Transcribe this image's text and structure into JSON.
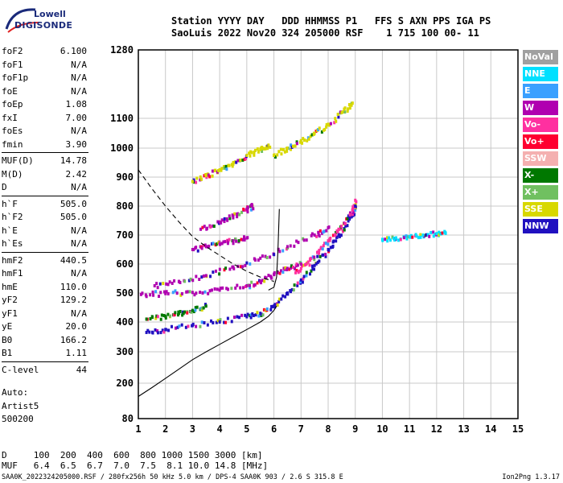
{
  "logo": {
    "line1": "Lowell",
    "line2": "DIGISONDE"
  },
  "header": {
    "line1": "Station YYYY DAY   DDD HHMMSS P1   FFS S AXN PPS IGA PS",
    "line2": "SaoLuis 2022 Nov20 324 205000 RSF    1 715 100 00- 11"
  },
  "params": [
    {
      "k": "foF2",
      "v": "6.100"
    },
    {
      "k": "foF1",
      "v": "N/A"
    },
    {
      "k": "foF1p",
      "v": "N/A"
    },
    {
      "k": "foE",
      "v": "N/A"
    },
    {
      "k": "foEp",
      "v": "1.08"
    },
    {
      "k": "fxI",
      "v": "7.00"
    },
    {
      "k": "foEs",
      "v": "N/A"
    },
    {
      "k": "fmin",
      "v": "3.90"
    },
    {
      "k": "MUF(D)",
      "v": "14.78"
    },
    {
      "k": "M(D)",
      "v": "2.42"
    },
    {
      "k": "D",
      "v": "N/A"
    },
    {
      "k": "h`F",
      "v": "505.0"
    },
    {
      "k": "h`F2",
      "v": "505.0"
    },
    {
      "k": "h`E",
      "v": "N/A"
    },
    {
      "k": "h`Es",
      "v": "N/A"
    },
    {
      "k": "hmF2",
      "v": "440.5"
    },
    {
      "k": "hmF1",
      "v": "N/A"
    },
    {
      "k": "hmE",
      "v": "110.0"
    },
    {
      "k": "yF2",
      "v": "129.2"
    },
    {
      "k": "yF1",
      "v": "N/A"
    },
    {
      "k": "yE",
      "v": "20.0"
    },
    {
      "k": "B0",
      "v": "166.2"
    },
    {
      "k": "B1",
      "v": "1.11"
    },
    {
      "k": "C-level",
      "v": "44"
    }
  ],
  "auto": {
    "line1": "Auto:",
    "line2": "Artist5",
    "line3": "500200"
  },
  "dmuf": {
    "d_line": "D     100  200  400  600  800 1000 1500 3000 [km]",
    "muf_line": "MUF   6.4  6.5  6.7  7.0  7.5  8.1 10.0 14.8 [MHz]"
  },
  "footer": {
    "left": "SAA0K_2022324205000.RSF / 280fx256h 50 kHz 5.0 km / DPS-4 SAA0K 903 / 2.6 S 315.8 E",
    "right": "Ion2Png 1.3.17"
  },
  "legend": [
    {
      "label": "NoVal",
      "color": "#a0a0a0"
    },
    {
      "label": "NNE",
      "color": "#00e0ff"
    },
    {
      "label": "E",
      "color": "#3aa0ff"
    },
    {
      "label": "W",
      "color": "#b000b0"
    },
    {
      "label": "Vo-",
      "color": "#ff30a0"
    },
    {
      "label": "Vo+",
      "color": "#ff0030"
    },
    {
      "label": "SSW",
      "color": "#f4b0b0"
    },
    {
      "label": "X-",
      "color": "#007800"
    },
    {
      "label": "X+",
      "color": "#70c060"
    },
    {
      "label": "SSE",
      "color": "#d8d800"
    },
    {
      "label": "NNW",
      "color": "#2010c0"
    }
  ],
  "chart_data": {
    "type": "scatter",
    "title": "",
    "xlabel": "",
    "ylabel": "",
    "xlim": [
      1,
      15
    ],
    "ylim": [
      80,
      1280
    ],
    "x_ticks": [
      1,
      2,
      3,
      4,
      5,
      6,
      7,
      8,
      9,
      10,
      11,
      12,
      13,
      14,
      15
    ],
    "y_ticks": [
      80,
      200,
      300,
      400,
      500,
      600,
      700,
      800,
      900,
      1000,
      1100,
      1280
    ],
    "grid": true,
    "series": [
      {
        "values": [
          [
            1.3,
            365
          ],
          [
            2.0,
            375
          ],
          [
            3.0,
            388
          ],
          [
            4.0,
            400
          ],
          [
            5.0,
            418
          ],
          [
            5.5,
            430
          ],
          [
            6.0,
            455
          ],
          [
            6.5,
            500
          ],
          [
            7.0,
            545
          ],
          [
            7.5,
            595
          ],
          [
            8.0,
            650
          ],
          [
            8.4,
            700
          ],
          [
            8.8,
            760
          ],
          [
            9.0,
            800
          ]
        ],
        "color_key": "NNW"
      },
      {
        "values": [
          [
            1.1,
            495
          ],
          [
            2.0,
            498
          ],
          [
            3.0,
            502
          ],
          [
            4.0,
            510
          ],
          [
            5.0,
            525
          ],
          [
            5.5,
            540
          ],
          [
            6.0,
            565
          ],
          [
            6.5,
            585
          ],
          [
            7.0,
            600
          ]
        ],
        "color_key": "W"
      },
      {
        "values": [
          [
            1.6,
            525
          ],
          [
            2.5,
            540
          ],
          [
            3.5,
            560
          ],
          [
            4.5,
            590
          ],
          [
            5.5,
            620
          ],
          [
            6.5,
            660
          ],
          [
            7.5,
            700
          ],
          [
            8.0,
            725
          ]
        ],
        "color_key": "W"
      },
      {
        "values": [
          [
            1.3,
            410
          ],
          [
            2.0,
            420
          ],
          [
            2.5,
            430
          ],
          [
            3.0,
            440
          ],
          [
            3.5,
            455
          ]
        ],
        "color_key": "X-"
      },
      {
        "values": [
          [
            6.8,
            570
          ],
          [
            7.2,
            600
          ],
          [
            7.6,
            640
          ],
          [
            8.0,
            680
          ],
          [
            8.4,
            720
          ],
          [
            8.8,
            770
          ],
          [
            9.0,
            820
          ]
        ],
        "color_key": "Vo-"
      },
      {
        "values": [
          [
            3.0,
            650
          ],
          [
            3.5,
            660
          ],
          [
            4.0,
            670
          ],
          [
            4.5,
            680
          ],
          [
            5.0,
            690
          ]
        ],
        "color_key": "W"
      },
      {
        "values": [
          [
            3.3,
            720
          ],
          [
            4.0,
            745
          ],
          [
            4.5,
            765
          ],
          [
            5.0,
            790
          ],
          [
            5.2,
            800
          ]
        ],
        "color_key": "W"
      },
      {
        "values": [
          [
            3.0,
            885
          ],
          [
            3.5,
            905
          ],
          [
            4.0,
            925
          ],
          [
            4.5,
            945
          ],
          [
            5.0,
            975
          ],
          [
            5.5,
            995
          ],
          [
            5.8,
            1010
          ]
        ],
        "color_key": "SSE"
      },
      {
        "values": [
          [
            6.0,
            975
          ],
          [
            6.5,
            1000
          ],
          [
            7.0,
            1025
          ],
          [
            7.5,
            1050
          ],
          [
            8.0,
            1080
          ],
          [
            8.5,
            1115
          ],
          [
            8.9,
            1140
          ]
        ],
        "color_key": "SSE"
      },
      {
        "values": [
          [
            10.0,
            685
          ],
          [
            10.5,
            690
          ],
          [
            11.0,
            695
          ],
          [
            11.5,
            700
          ],
          [
            12.0,
            705
          ],
          [
            12.3,
            710
          ]
        ],
        "color_key": "NNE"
      }
    ],
    "lines": [
      {
        "name": "profile",
        "style": "solid",
        "points": [
          [
            1.0,
            155
          ],
          [
            1.5,
            185
          ],
          [
            2.0,
            215
          ],
          [
            2.5,
            245
          ],
          [
            3.0,
            275
          ],
          [
            3.5,
            300
          ],
          [
            4.0,
            325
          ],
          [
            4.5,
            350
          ],
          [
            5.0,
            375
          ],
          [
            5.5,
            400
          ],
          [
            5.8,
            420
          ],
          [
            6.0,
            440
          ],
          [
            6.1,
            455
          ]
        ]
      },
      {
        "name": "muf",
        "style": "dashed",
        "points": [
          [
            1.0,
            925
          ],
          [
            1.5,
            860
          ],
          [
            2.0,
            800
          ],
          [
            2.5,
            745
          ],
          [
            3.0,
            695
          ],
          [
            3.5,
            660
          ],
          [
            4.0,
            630
          ],
          [
            4.5,
            600
          ],
          [
            5.0,
            575
          ],
          [
            5.5,
            555
          ],
          [
            6.0,
            540
          ]
        ]
      },
      {
        "name": "f2-trace",
        "style": "solid",
        "points": [
          [
            5.8,
            510
          ],
          [
            6.0,
            520
          ],
          [
            6.1,
            555
          ],
          [
            6.15,
            650
          ],
          [
            6.2,
            790
          ]
        ]
      }
    ]
  }
}
